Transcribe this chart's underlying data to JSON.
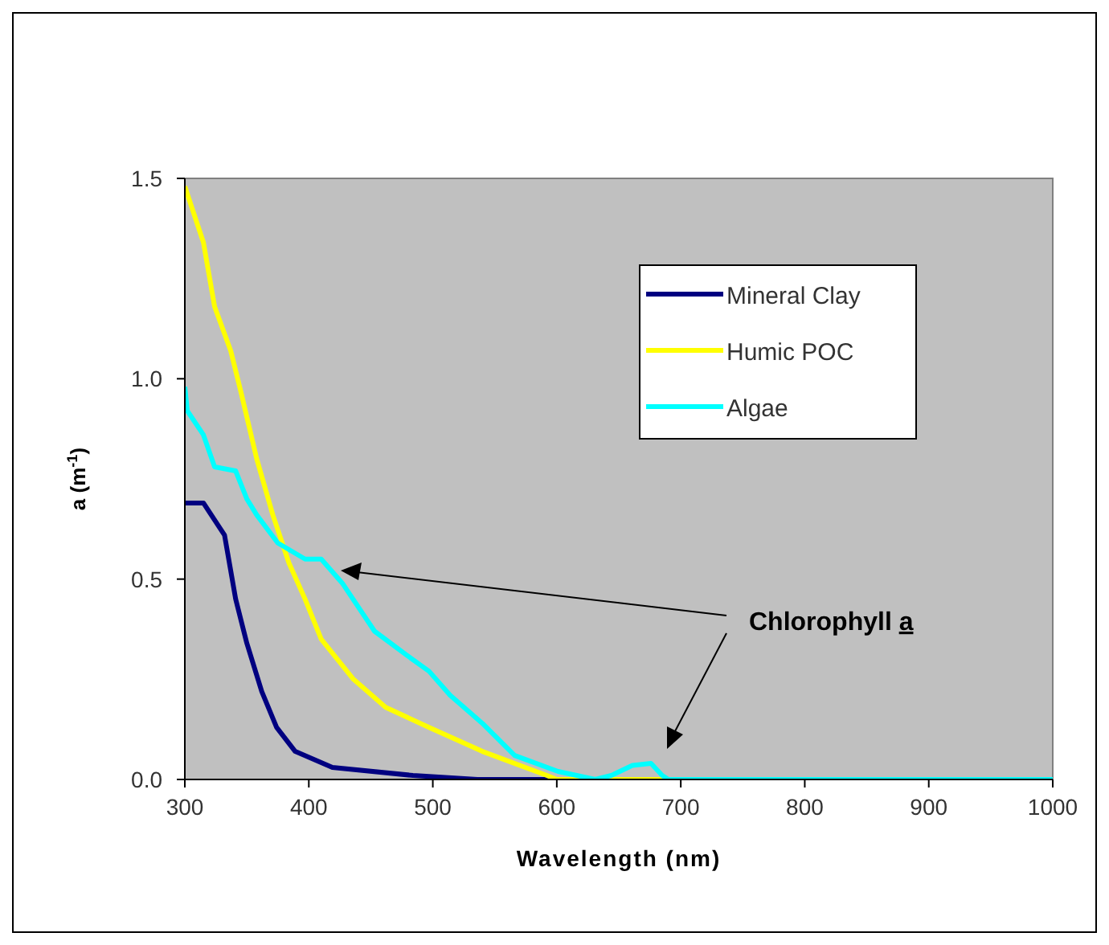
{
  "chart_data": {
    "type": "line",
    "xlabel": "Wavelength (nm)",
    "ylabel": "a (m$^{-1}$)",
    "xlim": [
      300,
      1000
    ],
    "xticks": [
      300,
      400,
      500,
      600,
      700,
      800,
      900,
      1000
    ],
    "ylim": [
      0,
      1.5
    ],
    "yticks": [
      {
        "value": 0,
        "label": "0.0"
      },
      {
        "value": 0.5,
        "label": "0.5"
      },
      {
        "value": 1,
        "label": "1.0"
      },
      {
        "value": 1.5,
        "label": "1.5"
      }
    ],
    "grid": false,
    "legend": "top right",
    "marker": "none",
    "line_style": "solid",
    "annotations": [
      "Chlorophyll a"
    ],
    "series": [
      {
        "name": "Mineral Clay",
        "color": "#000080",
        "x": [
          300,
          315,
          332,
          341,
          350,
          362,
          374,
          389,
          419,
          484,
          536,
          1000
        ],
        "values": [
          0.69,
          0.69,
          0.61,
          0.45,
          0.34,
          0.22,
          0.13,
          0.07,
          0.03,
          0.01,
          0,
          0
        ]
      },
      {
        "name": "Humic POC",
        "color": "#ffff00",
        "x": [
          300,
          315,
          324,
          337,
          345,
          358,
          371,
          384,
          397,
          410,
          436,
          462,
          497,
          540,
          592,
          600,
          1000
        ],
        "values": [
          1.48,
          1.34,
          1.18,
          1.07,
          0.97,
          0.8,
          0.66,
          0.54,
          0.45,
          0.35,
          0.25,
          0.18,
          0.13,
          0.07,
          0.01,
          0,
          0
        ]
      },
      {
        "name": "Algae",
        "color": "#00ffff",
        "x": [
          300,
          302,
          315,
          324,
          341,
          350,
          358,
          375,
          397,
          410,
          427,
          453,
          479,
          497,
          514,
          540,
          566,
          601,
          631,
          644,
          661,
          676,
          685,
          690,
          1000
        ],
        "values": [
          0.98,
          0.92,
          0.86,
          0.78,
          0.77,
          0.7,
          0.66,
          0.59,
          0.55,
          0.55,
          0.49,
          0.37,
          0.31,
          0.27,
          0.21,
          0.14,
          0.06,
          0.02,
          0,
          0.01,
          0.035,
          0.04,
          0.01,
          0,
          0
        ]
      }
    ]
  }
}
